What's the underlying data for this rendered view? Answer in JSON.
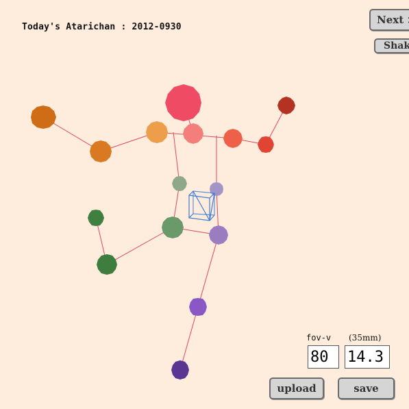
{
  "header": {
    "title": "Today's Atarichan : 2012-0930"
  },
  "buttons": {
    "next": "Next >",
    "shake": "Shake",
    "upload": "upload",
    "save": "save"
  },
  "camera": {
    "fov_label": "fov-v",
    "focal_label": "(35mm)",
    "fov_value": "80",
    "focal_value": "14.3"
  },
  "colors": {
    "background": "#feecdd",
    "bone_line": "#e0475f",
    "cube_line": "#3b7bd6"
  }
}
